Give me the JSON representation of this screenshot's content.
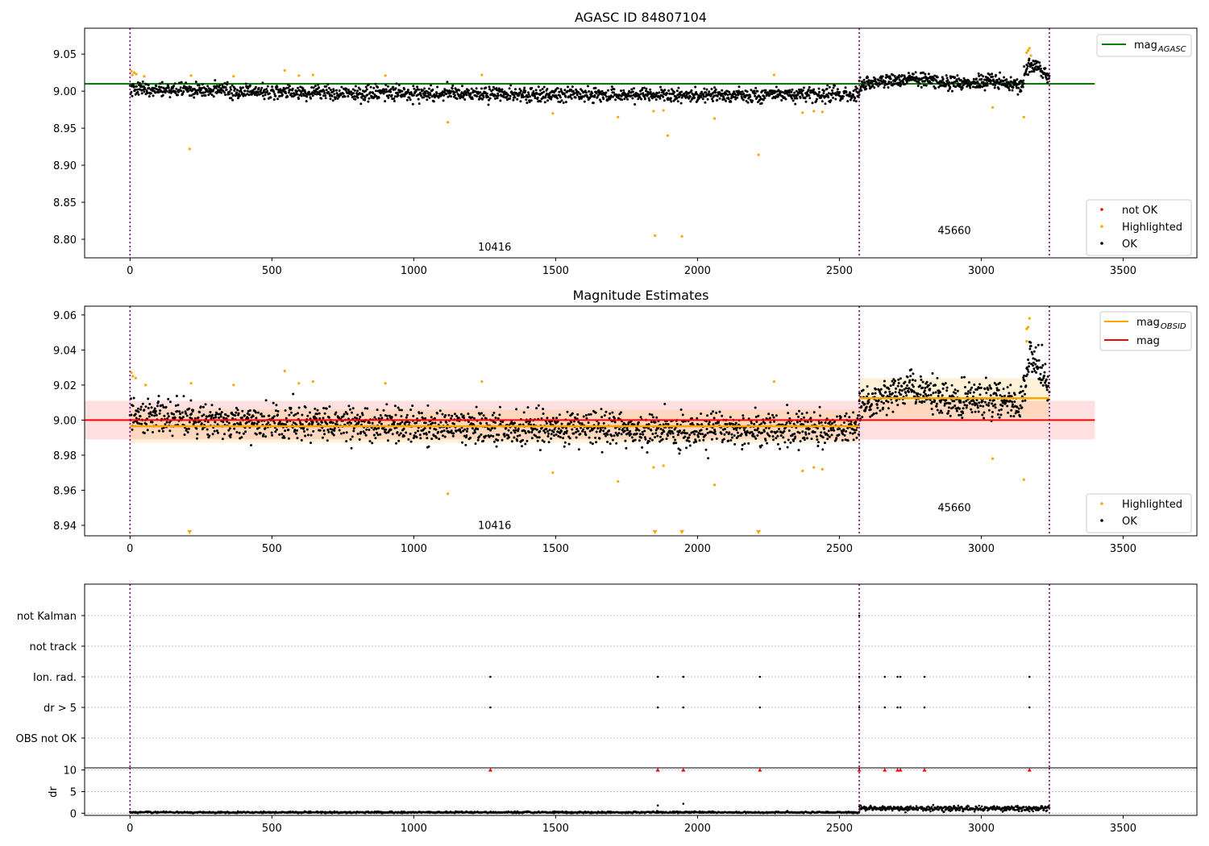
{
  "figure": {
    "title_top": "AGASC ID 84807104",
    "title_middle": "Magnitude Estimates"
  },
  "chart_data": [
    {
      "type": "scatter",
      "title": "AGASC ID 84807104",
      "xlim": [
        -160,
        3760
      ],
      "ylim": [
        8.775,
        9.085
      ],
      "xticks": [
        0,
        500,
        1000,
        1500,
        2000,
        2500,
        3000,
        3500
      ],
      "yticks": [
        8.8,
        8.85,
        8.9,
        8.95,
        9.0,
        9.05
      ],
      "ytick_labels": [
        "8.80",
        "8.85",
        "8.90",
        "8.95",
        "9.00",
        "9.05"
      ],
      "observation_boundaries": [
        0,
        2570,
        3240
      ],
      "obsid_labels": [
        {
          "text": "10416",
          "x": 1285,
          "y": 8.785
        },
        {
          "text": "45660",
          "x": 2905,
          "y": 8.807
        }
      ],
      "mag_agasc": {
        "value": 9.01,
        "x_range": [
          -160,
          3400
        ],
        "color": "#008000"
      },
      "legend_lines": [
        {
          "label": "mag",
          "sub": "AGASC",
          "color": "#008000"
        }
      ],
      "legend_points": [
        {
          "label": "not OK",
          "color": "#ff0000"
        },
        {
          "label": "Highlighted",
          "color": "#ffa500"
        },
        {
          "label": "OK",
          "color": "#000000"
        }
      ],
      "ok_segments": [
        {
          "x_range": [
            0,
            2570
          ],
          "trend": [
            [
              0,
              9.003
            ],
            [
              500,
              8.999
            ],
            [
              1000,
              8.997
            ],
            [
              1500,
              8.995
            ],
            [
              2000,
              8.994
            ],
            [
              2570,
              8.996
            ]
          ],
          "scatter": 0.009,
          "count": 1700
        },
        {
          "x_range": [
            2570,
            3240
          ],
          "trend": [
            [
              2570,
              9.008
            ],
            [
              2750,
              9.018
            ],
            [
              2900,
              9.01
            ],
            [
              3050,
              9.014
            ],
            [
              3140,
              9.008
            ],
            [
              3170,
              9.038
            ],
            [
              3240,
              9.022
            ]
          ],
          "scatter": 0.009,
          "count": 520
        }
      ],
      "highlighted_points": [
        [
          5,
          9.027
        ],
        [
          8,
          9.022
        ],
        [
          15,
          9.025
        ],
        [
          22,
          9.023
        ],
        [
          50,
          9.02
        ],
        [
          210,
          8.922
        ],
        [
          215,
          9.021
        ],
        [
          365,
          9.02
        ],
        [
          545,
          9.028
        ],
        [
          595,
          9.021
        ],
        [
          645,
          9.022
        ],
        [
          900,
          9.021
        ],
        [
          1120,
          8.958
        ],
        [
          1240,
          9.022
        ],
        [
          1490,
          8.97
        ],
        [
          1720,
          8.965
        ],
        [
          1845,
          8.973
        ],
        [
          1850,
          8.805
        ],
        [
          1880,
          8.974
        ],
        [
          1895,
          8.94
        ],
        [
          1945,
          8.804
        ],
        [
          2060,
          8.963
        ],
        [
          2215,
          8.914
        ],
        [
          2270,
          9.022
        ],
        [
          2370,
          8.971
        ],
        [
          2410,
          8.973
        ],
        [
          2440,
          8.972
        ],
        [
          3040,
          8.978
        ],
        [
          3150,
          8.965
        ],
        [
          3160,
          9.052
        ],
        [
          3165,
          9.055
        ],
        [
          3170,
          9.058
        ],
        [
          3175,
          9.048
        ]
      ],
      "not_ok_points": []
    },
    {
      "type": "scatter",
      "title": "Magnitude Estimates",
      "xlim": [
        -160,
        3760
      ],
      "ylim": [
        8.934,
        9.065
      ],
      "xticks": [
        0,
        500,
        1000,
        1500,
        2000,
        2500,
        3000,
        3500
      ],
      "yticks": [
        8.94,
        8.96,
        8.98,
        9.0,
        9.02,
        9.04,
        9.06
      ],
      "ytick_labels": [
        "8.94",
        "8.96",
        "8.98",
        "9.00",
        "9.02",
        "9.04",
        "9.06"
      ],
      "observation_boundaries": [
        0,
        2570,
        3240
      ],
      "obsid_labels": [
        {
          "text": "10416",
          "x": 1285,
          "y": 8.938
        },
        {
          "text": "45660",
          "x": 2905,
          "y": 8.948
        }
      ],
      "mag": {
        "value": 9.0,
        "x_range": [
          -160,
          3400
        ],
        "band": [
          8.989,
          9.011
        ],
        "color": "#ff0000"
      },
      "mag_obsid": [
        {
          "value": 8.9965,
          "x_range": [
            0,
            2570
          ],
          "band": [
            8.987,
            9.006
          ]
        },
        {
          "value": 9.0125,
          "x_range": [
            2570,
            3240
          ],
          "band": [
            9.001,
            9.024
          ]
        }
      ],
      "legend_lines": [
        {
          "label": "mag",
          "sub": "OBSID",
          "color": "#ffa500"
        },
        {
          "label": "mag",
          "sub": "",
          "color": "#ff0000"
        }
      ],
      "legend_points": [
        {
          "label": "Highlighted",
          "color": "#ffa500"
        },
        {
          "label": "OK",
          "color": "#000000"
        }
      ],
      "ok_segments": [
        {
          "x_range": [
            0,
            2570
          ],
          "trend": [
            [
              0,
              9.003
            ],
            [
              500,
              8.999
            ],
            [
              1000,
              8.997
            ],
            [
              1500,
              8.995
            ],
            [
              2000,
              8.994
            ],
            [
              2570,
              8.996
            ]
          ],
          "scatter": 0.009,
          "count": 1700
        },
        {
          "x_range": [
            2570,
            3240
          ],
          "trend": [
            [
              2570,
              9.008
            ],
            [
              2750,
              9.018
            ],
            [
              2900,
              9.01
            ],
            [
              3050,
              9.014
            ],
            [
              3140,
              9.008
            ],
            [
              3170,
              9.038
            ],
            [
              3240,
              9.022
            ]
          ],
          "scatter": 0.009,
          "count": 520
        }
      ],
      "highlighted_points": [
        [
          5,
          9.027
        ],
        [
          10,
          9.025
        ],
        [
          20,
          9.024
        ],
        [
          55,
          9.02
        ],
        [
          215,
          9.021
        ],
        [
          365,
          9.02
        ],
        [
          545,
          9.028
        ],
        [
          595,
          9.021
        ],
        [
          645,
          9.022
        ],
        [
          900,
          9.021
        ],
        [
          1120,
          8.958
        ],
        [
          1240,
          9.022
        ],
        [
          1490,
          8.97
        ],
        [
          1720,
          8.965
        ],
        [
          1845,
          8.973
        ],
        [
          1880,
          8.974
        ],
        [
          2060,
          8.963
        ],
        [
          2270,
          9.022
        ],
        [
          2370,
          8.971
        ],
        [
          2410,
          8.973
        ],
        [
          2440,
          8.972
        ],
        [
          3040,
          8.978
        ],
        [
          3150,
          8.966
        ],
        [
          3160,
          9.052
        ],
        [
          3165,
          9.053
        ],
        [
          3170,
          9.058
        ],
        [
          3160,
          9.045
        ]
      ],
      "off_scale_low_points": [
        210,
        1850,
        1945,
        2215
      ]
    },
    {
      "type": "scatter",
      "title": "",
      "xlim": [
        -160,
        3760
      ],
      "categories": [
        "not Kalman",
        "not track",
        "Ion. rad.",
        "dr > 5",
        "OBS not OK"
      ],
      "observation_boundaries": [
        0,
        2570,
        3240
      ],
      "flags": {
        "not Kalman": [
          2570
        ],
        "not track": [],
        "Ion. rad.": [
          1270,
          1860,
          1950,
          2220,
          2570,
          2660,
          2705,
          2715,
          2800,
          3170
        ],
        "dr > 5": [
          1270,
          1860,
          1950,
          2220,
          2570,
          2660,
          2705,
          2715,
          2800,
          3170
        ],
        "OBS not OK": []
      }
    },
    {
      "type": "scatter",
      "title": "",
      "ylabel": "dr",
      "xlim": [
        -160,
        3760
      ],
      "ylim": [
        -0.5,
        10.5
      ],
      "xticks": [
        0,
        500,
        1000,
        1500,
        2000,
        2500,
        3000,
        3500
      ],
      "yticks": [
        0,
        5,
        10
      ],
      "observation_boundaries": [
        0,
        2570,
        3240
      ],
      "dr_segments": [
        {
          "x_range": [
            0,
            2570
          ],
          "level": 0.2,
          "scatter": 0.15
        },
        {
          "x_range": [
            2570,
            3240
          ],
          "level": 1.1,
          "scatter": 0.45
        }
      ],
      "dr_outliers": [
        [
          1860,
          1.8
        ],
        [
          1950,
          2.2
        ]
      ],
      "capped_points": [
        1270,
        1860,
        1950,
        2220,
        2570,
        2660,
        2705,
        2715,
        2800,
        3170
      ],
      "cap_value": 10
    }
  ]
}
